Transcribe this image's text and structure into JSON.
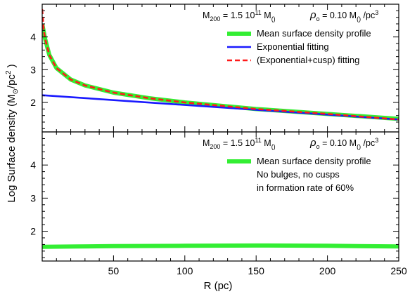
{
  "figure": {
    "ylabel_prefix": "Log Surface density (M",
    "ylabel_sub": "⊙",
    "ylabel_mid": "/pc",
    "ylabel_sup": "2",
    "ylabel_suffix": " )",
    "xlabel": "R (pc)"
  },
  "chart_data": [
    {
      "type": "line",
      "panel": "top",
      "header": {
        "m200_prefix": "M",
        "m200_sub": "200",
        "m200_value": " = 1.5 10",
        "m200_exp": "11",
        "m200_unit": " M",
        "m200_unit_sub": "()",
        "rho_symbol": "ρ",
        "rho_sub": "o",
        "rho_value": " = 0.10 M",
        "rho_unit_sub": "()",
        "rho_per": " /pc",
        "rho_per_sup": "3"
      },
      "xlim": [
        0,
        250
      ],
      "ylim": [
        1.1,
        5.0
      ],
      "x_ticks": [
        50,
        100,
        150,
        200,
        250
      ],
      "y_ticks": [
        2,
        3,
        4
      ],
      "legend_position": "top-right",
      "series": [
        {
          "name": "Mean surface density profile",
          "color": "#33ee33",
          "style": "thick-solid",
          "x": [
            0,
            2,
            5,
            10,
            20,
            30,
            50,
            75,
            100,
            150,
            200,
            250
          ],
          "y": [
            4.4,
            3.95,
            3.45,
            3.05,
            2.7,
            2.52,
            2.3,
            2.13,
            2.0,
            1.8,
            1.65,
            1.5
          ]
        },
        {
          "name": "Exponential fitting",
          "color": "#1a1aff",
          "style": "solid",
          "x": [
            0,
            250
          ],
          "y": [
            2.22,
            1.48
          ]
        },
        {
          "name": "(Exponential+cusp) fitting",
          "color": "#ff1a1a",
          "style": "dashed",
          "x": [
            0,
            1,
            2,
            5,
            10,
            20,
            30,
            50,
            75,
            100,
            150,
            200,
            250
          ],
          "y": [
            4.85,
            4.25,
            3.95,
            3.45,
            3.05,
            2.7,
            2.52,
            2.3,
            2.13,
            2.0,
            1.8,
            1.65,
            1.48
          ]
        }
      ]
    },
    {
      "type": "line",
      "panel": "bottom",
      "header": {
        "m200_prefix": "M",
        "m200_sub": "200",
        "m200_value": " = 1.5 10",
        "m200_exp": "11",
        "m200_unit": " M",
        "m200_unit_sub": "()",
        "rho_symbol": "ρ",
        "rho_sub": "o",
        "rho_value": " = 0.10 M",
        "rho_unit_sub": "()",
        "rho_per": " /pc",
        "rho_per_sup": "3"
      },
      "xlim": [
        0,
        250
      ],
      "ylim": [
        1.1,
        5.0
      ],
      "x_ticks": [
        50,
        100,
        150,
        200,
        250
      ],
      "y_ticks": [
        2,
        3,
        4
      ],
      "legend_position": "top-right",
      "notes": [
        "No bulges, no cusps",
        "in formation rate of 60%"
      ],
      "series": [
        {
          "name": "Mean surface density profile",
          "color": "#33ee33",
          "style": "thick-solid",
          "x": [
            0,
            25,
            50,
            100,
            150,
            200,
            250
          ],
          "y": [
            1.53,
            1.54,
            1.55,
            1.56,
            1.57,
            1.56,
            1.54
          ]
        }
      ]
    }
  ]
}
